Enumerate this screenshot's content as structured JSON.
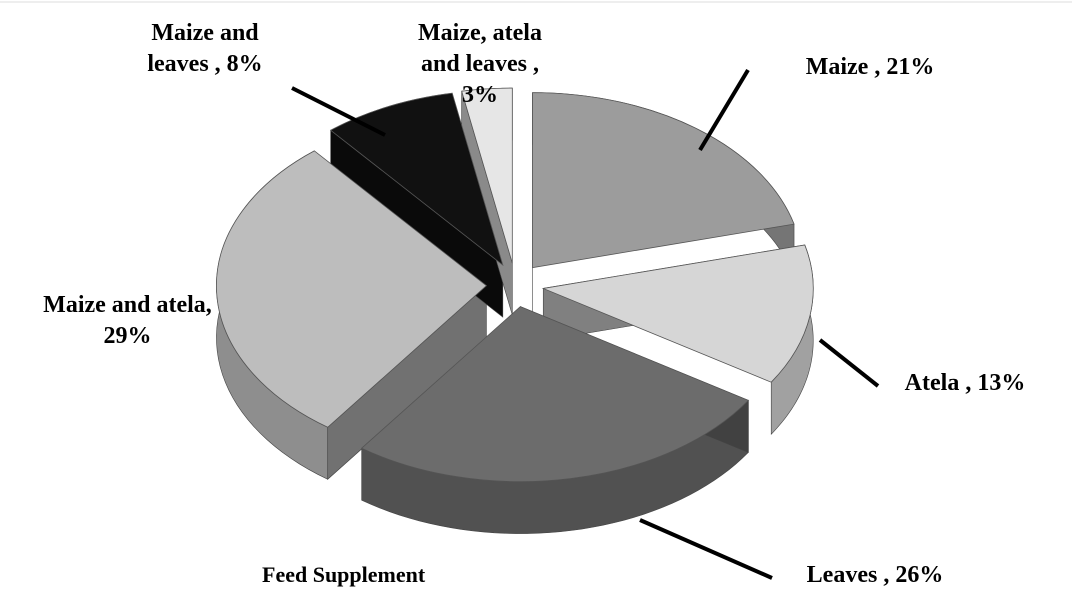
{
  "chart_data": {
    "type": "pie3d",
    "title": "Feed Supplement",
    "values": [
      21,
      13,
      26,
      29,
      8,
      3
    ],
    "value_labels": [
      "Maize , 21%",
      "Atela , 13%",
      "Leaves , 26%",
      "Maize and atela, 29%",
      "Maize and leaves , 8%",
      "Maize, atela and leaves , 3%"
    ],
    "colors": [
      "#9c9c9c",
      "#d6d6d6",
      "#6c6c6c",
      "#bdbdbd",
      "#111111",
      "#e6e6e6"
    ]
  }
}
